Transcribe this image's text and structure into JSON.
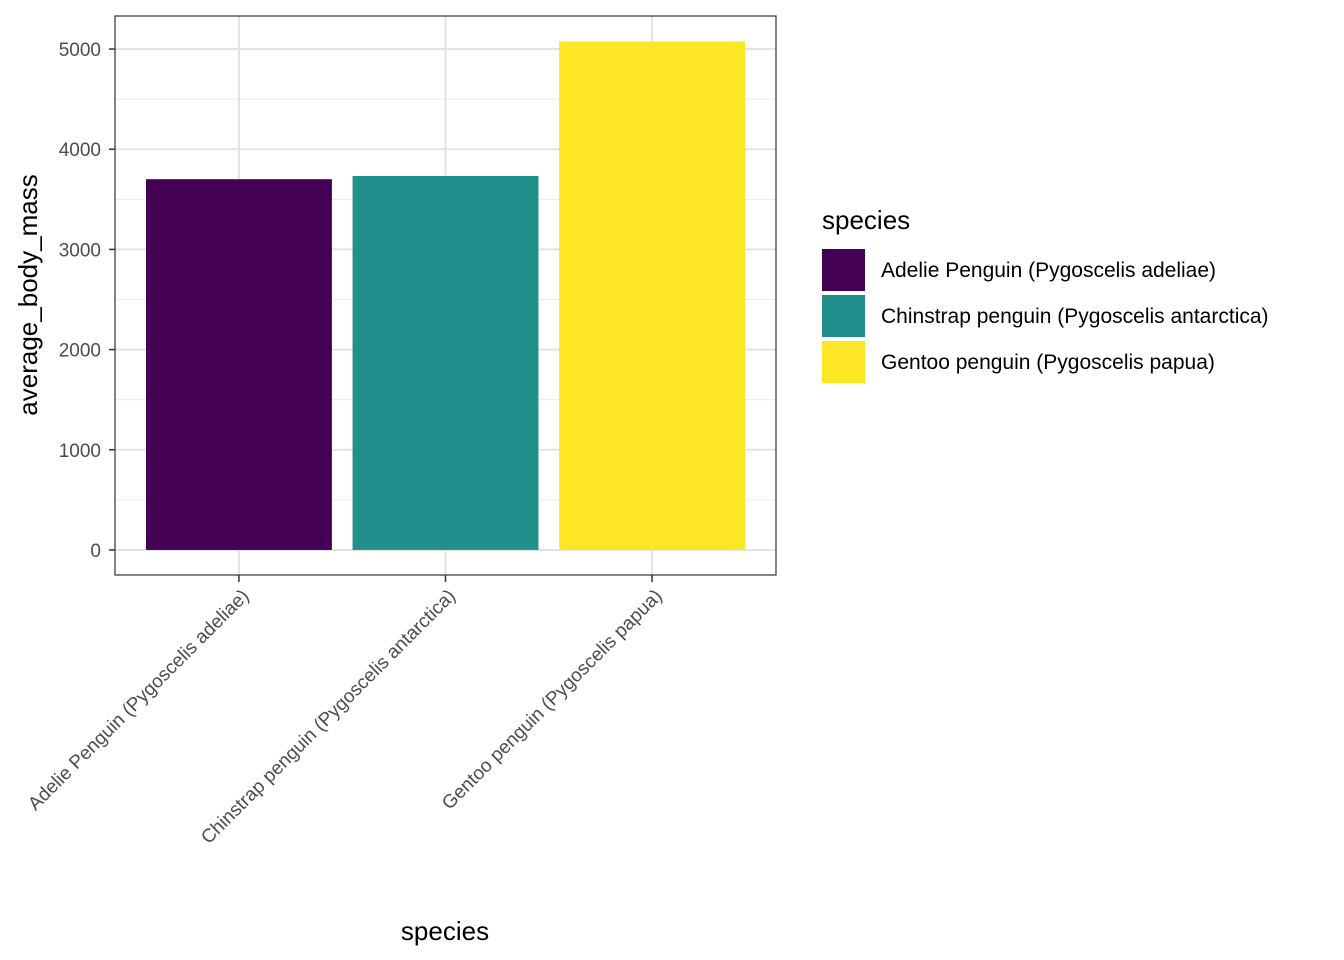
{
  "chart_data": {
    "type": "bar",
    "title": "",
    "xlabel": "species",
    "ylabel": "average_body_mass",
    "categories": [
      "Adelie Penguin (Pygoscelis adeliae)",
      "Chinstrap penguin (Pygoscelis antarctica)",
      "Gentoo penguin (Pygoscelis papua)"
    ],
    "values": [
      3701,
      3733,
      5076
    ],
    "colors": [
      "#440154",
      "#21908C",
      "#FDE725"
    ],
    "ylim": [
      -250,
      5330
    ],
    "yticks": [
      0,
      1000,
      2000,
      3000,
      4000,
      5000
    ],
    "ytick_labels": [
      "0",
      "1000",
      "2000",
      "3000",
      "4000",
      "5000"
    ],
    "grid": true,
    "legend": {
      "title": "species",
      "placement": "right",
      "entries": [
        "Adelie Penguin (Pygoscelis adeliae)",
        "Chinstrap penguin (Pygoscelis antarctica)",
        "Gentoo penguin (Pygoscelis papua)"
      ]
    }
  }
}
